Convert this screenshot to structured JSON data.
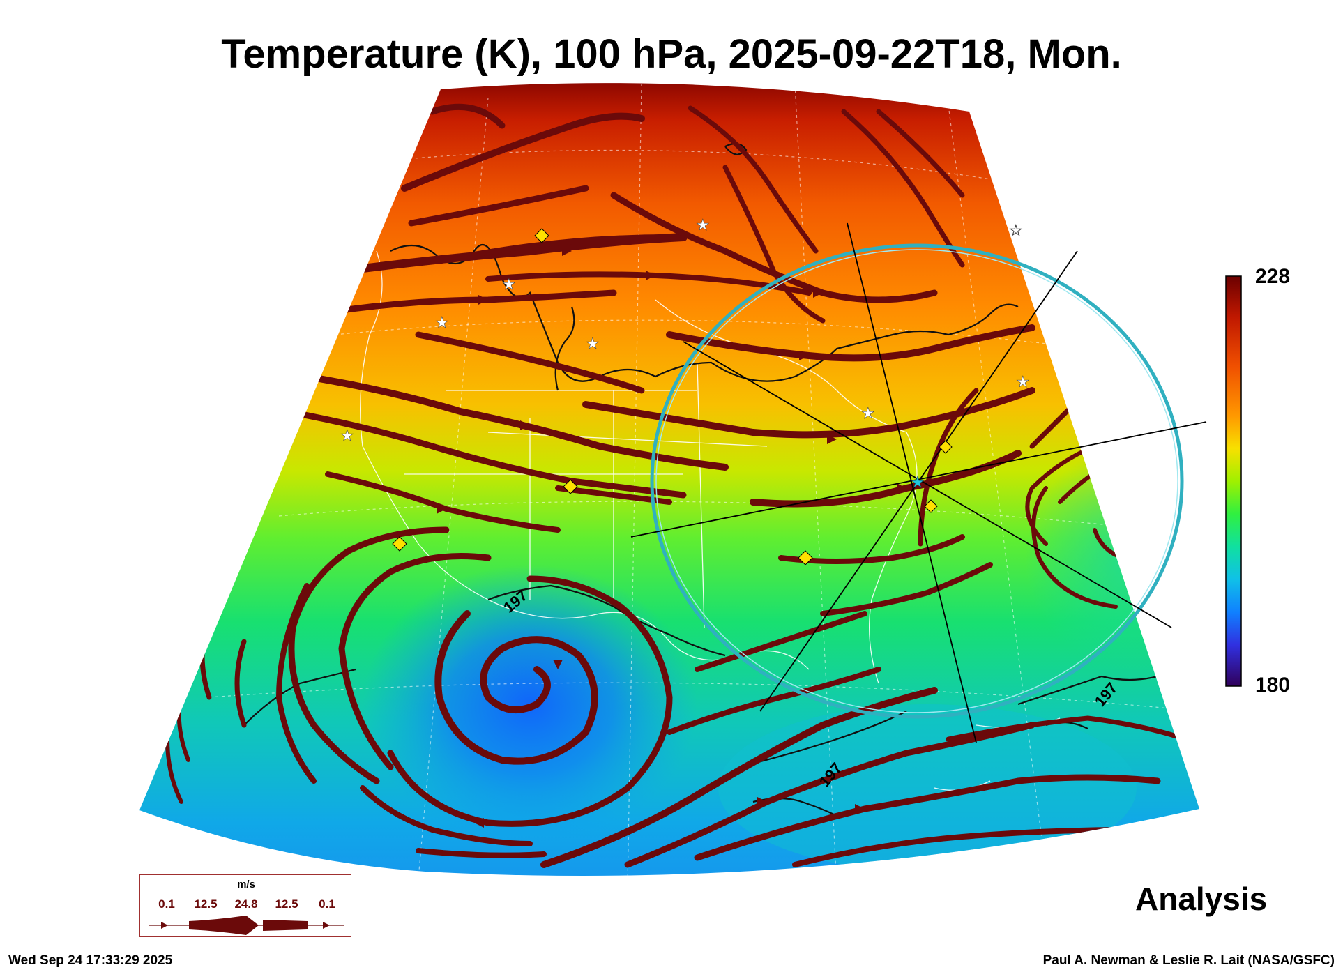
{
  "title": "Temperature (K), 100 hPa, 2025-09-22T18, Mon.",
  "colorbar": {
    "max_label": "228",
    "min_label": "180",
    "range": [
      180,
      228
    ],
    "colors": [
      "#6b0000",
      "#b01000",
      "#e83a00",
      "#ff7000",
      "#ffa800",
      "#f0e000",
      "#a8f000",
      "#40f040",
      "#10e090",
      "#10c0e0",
      "#1080ff",
      "#2040e0",
      "#4010c0",
      "#400060"
    ]
  },
  "contour_labels": [
    "197",
    "197",
    "197"
  ],
  "analysis_label": "Analysis",
  "wind_legend": {
    "unit": "m/s",
    "ticks": [
      "0.1",
      "12.5",
      "24.8",
      "12.5",
      "0.1"
    ]
  },
  "footer": {
    "timestamp": "Wed Sep 24 17:33:29 2025",
    "credit": "Paul A. Newman & Leslie R. Lait (NASA/GSFC)"
  },
  "colors": {
    "streamline": "#6b0a0a",
    "ring": "#30b0c0",
    "marker_diamond": "#ffe000",
    "marker_star": "#ffffff"
  },
  "icons": [
    "diamond-marker-icon",
    "star-marker-icon",
    "center-star-icon"
  ]
}
